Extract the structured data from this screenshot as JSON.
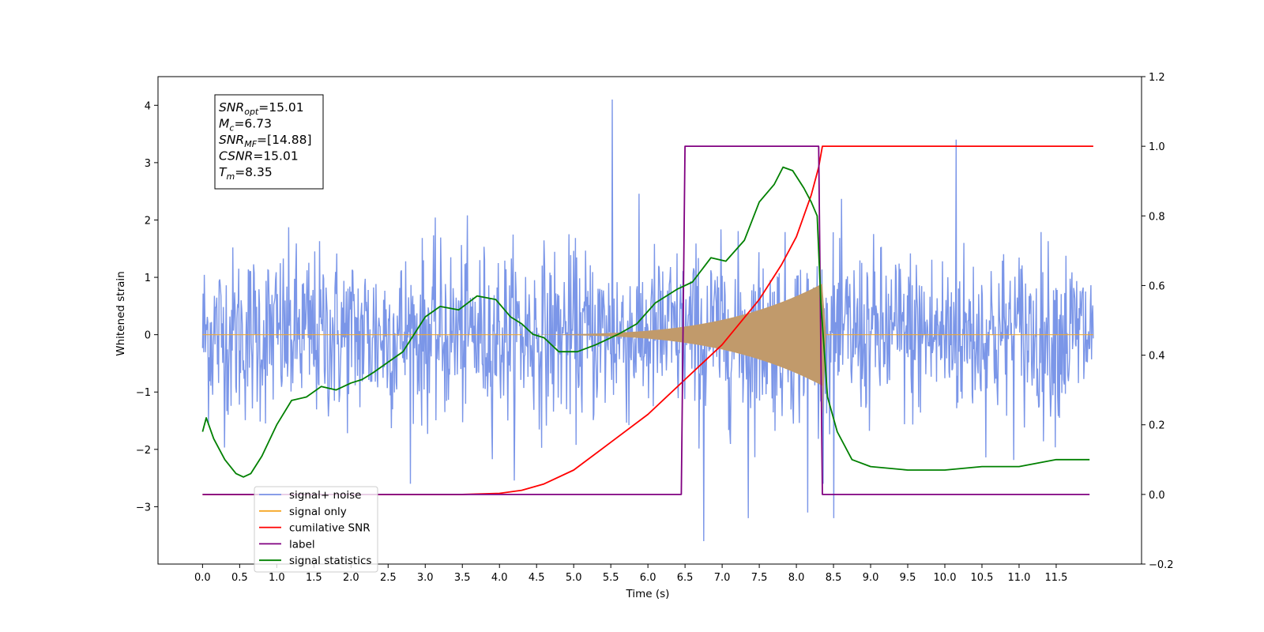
{
  "colors": {
    "noise": "#7b96e8",
    "signal": "#f5a623",
    "cumulative_snr": "#ff0000",
    "label": "#800080",
    "statistics": "#008000",
    "signal_fill": "#c19a6b"
  },
  "info_box": {
    "lines": [
      {
        "base": "SNR",
        "sub": "opt",
        "rest": "=15.01"
      },
      {
        "base": "M",
        "sub": "c",
        "rest": "=6.73"
      },
      {
        "base": "SNR",
        "sub": "MF",
        "rest": "=[14.88]"
      },
      {
        "base": "CSNR",
        "sub": "",
        "rest": "=15.01"
      },
      {
        "base": "T",
        "sub": "m",
        "rest": "=8.35"
      }
    ]
  },
  "chart_data": {
    "type": "line",
    "xlabel": "Time (s)",
    "ylabel": "Whitened strain",
    "ylabel_right": "",
    "xlim": [
      -0.6,
      12.65
    ],
    "ylim_left": [
      -4.0,
      4.5
    ],
    "ylim_right": [
      -0.2,
      1.2
    ],
    "x_ticks": [
      0.0,
      0.5,
      1.0,
      1.5,
      2.0,
      2.5,
      3.0,
      3.5,
      4.0,
      4.5,
      5.0,
      5.5,
      6.0,
      6.5,
      7.0,
      7.5,
      8.0,
      8.5,
      9.0,
      9.5,
      10.0,
      10.5,
      11.0,
      11.5
    ],
    "x_tick_labels": [
      "0.0",
      "0.5",
      "1.0",
      "1.5",
      "2.0",
      "2.5",
      "3.0",
      "3.5",
      "4.0",
      "4.5",
      "5.0",
      "5.5",
      "6.0",
      "6.5",
      "7.0",
      "7.5",
      "8.0",
      "8.5",
      "9.0",
      "9.5",
      "10.0",
      "10.5",
      "11.0",
      "11.5"
    ],
    "y_ticks_left": [
      -3,
      -2,
      -1,
      0,
      1,
      2,
      3,
      4
    ],
    "y_tick_labels_left": [
      "−3",
      "−2",
      "−1",
      "0",
      "1",
      "2",
      "3",
      "4"
    ],
    "y_ticks_right": [
      -0.2,
      0.0,
      0.2,
      0.4,
      0.6,
      0.8,
      1.0,
      1.2
    ],
    "y_tick_labels_right": [
      "−0.2",
      "0.0",
      "0.2",
      "0.4",
      "0.6",
      "0.8",
      "1.0",
      "1.2"
    ],
    "legend_position": "lower-left",
    "legend": [
      {
        "label": "signal+ noise",
        "color": "#7b96e8"
      },
      {
        "label": "signal only",
        "color": "#f5a623"
      },
      {
        "label": "cumilative SNR",
        "color": "#ff0000"
      },
      {
        "label": "label",
        "color": "#800080"
      },
      {
        "label": "signal statistics",
        "color": "#008000"
      }
    ],
    "series": [
      {
        "name": "signal+ noise",
        "axis": "left",
        "x_range": [
          0.0,
          12.0
        ],
        "sample_step": 0.008,
        "typical_range": [
          -1.7,
          1.7
        ],
        "extreme_values": [
          {
            "x": 5.52,
            "y": 4.1
          },
          {
            "x": 10.15,
            "y": 3.4
          },
          {
            "x": 6.75,
            "y": -3.6
          },
          {
            "x": 7.35,
            "y": -3.2
          },
          {
            "x": 8.15,
            "y": -3.1
          },
          {
            "x": 8.5,
            "y": -3.2
          }
        ]
      },
      {
        "name": "signal only",
        "axis": "left",
        "x_range": [
          0.0,
          12.0
        ],
        "chirp_start": 4.3,
        "chirp_end": 8.35,
        "max_amplitude": 0.85
      },
      {
        "name": "cumilative SNR",
        "axis": "right",
        "x": [
          0.0,
          3.5,
          4.0,
          4.3,
          4.6,
          5.0,
          5.5,
          6.0,
          6.5,
          7.0,
          7.5,
          7.8,
          8.0,
          8.2,
          8.3,
          8.35,
          12.0
        ],
        "y": [
          0.0,
          0.0,
          0.003,
          0.012,
          0.03,
          0.07,
          0.15,
          0.23,
          0.33,
          0.43,
          0.56,
          0.66,
          0.74,
          0.86,
          0.94,
          1.0,
          1.0
        ]
      },
      {
        "name": "label",
        "axis": "right",
        "x": [
          0.0,
          6.45,
          6.5,
          8.3,
          8.35,
          11.95
        ],
        "y": [
          0.0,
          0.0,
          1.0,
          1.0,
          0.0,
          0.0
        ]
      },
      {
        "name": "signal statistics",
        "axis": "right",
        "x": [
          0.0,
          0.05,
          0.15,
          0.3,
          0.45,
          0.55,
          0.65,
          0.8,
          1.0,
          1.2,
          1.4,
          1.6,
          1.8,
          2.0,
          2.15,
          2.3,
          2.5,
          2.7,
          2.85,
          3.0,
          3.2,
          3.45,
          3.7,
          3.95,
          4.15,
          4.3,
          4.45,
          4.6,
          4.8,
          5.05,
          5.3,
          5.6,
          5.85,
          6.1,
          6.4,
          6.6,
          6.85,
          7.05,
          7.3,
          7.5,
          7.7,
          7.82,
          7.95,
          8.1,
          8.2,
          8.28,
          8.33,
          8.42,
          8.55,
          8.75,
          9.0,
          9.5,
          10.0,
          10.5,
          11.0,
          11.5,
          11.95
        ],
        "y": [
          0.18,
          0.22,
          0.16,
          0.1,
          0.06,
          0.05,
          0.06,
          0.11,
          0.2,
          0.27,
          0.28,
          0.31,
          0.3,
          0.32,
          0.33,
          0.35,
          0.38,
          0.41,
          0.46,
          0.51,
          0.54,
          0.53,
          0.57,
          0.56,
          0.51,
          0.49,
          0.46,
          0.45,
          0.41,
          0.41,
          0.43,
          0.46,
          0.49,
          0.55,
          0.59,
          0.61,
          0.68,
          0.67,
          0.73,
          0.84,
          0.89,
          0.94,
          0.93,
          0.88,
          0.84,
          0.8,
          0.55,
          0.28,
          0.18,
          0.1,
          0.08,
          0.07,
          0.07,
          0.08,
          0.08,
          0.1,
          0.1
        ]
      }
    ]
  }
}
